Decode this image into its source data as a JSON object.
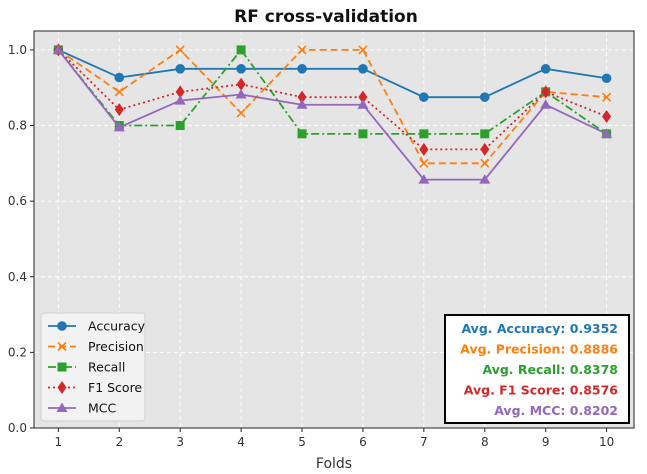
{
  "chart_data": {
    "type": "line",
    "title": "RF cross-validation",
    "xlabel": "Folds",
    "ylabel": "",
    "x": [
      1,
      2,
      3,
      4,
      5,
      6,
      7,
      8,
      9,
      10
    ],
    "xlim": [
      0.6,
      10.45
    ],
    "ylim": [
      0.0,
      1.05
    ],
    "yticks": [
      "0.0",
      "0.2",
      "0.4",
      "0.6",
      "0.8",
      "1.0"
    ],
    "xticks": [
      "1",
      "2",
      "3",
      "4",
      "5",
      "6",
      "7",
      "8",
      "9",
      "10"
    ],
    "grid": true,
    "legend_position": "lower-left",
    "series": [
      {
        "name": "Accuracy",
        "color": "#1f77b4",
        "linestyle": "solid",
        "marker": "circle",
        "values": [
          1.0,
          0.927,
          0.95,
          0.95,
          0.95,
          0.95,
          0.875,
          0.875,
          0.95,
          0.925
        ]
      },
      {
        "name": "Precision",
        "color": "#ff7f0e",
        "linestyle": "dashed",
        "marker": "x",
        "values": [
          1.0,
          0.889,
          1.0,
          0.833,
          1.0,
          1.0,
          0.7,
          0.7,
          0.889,
          0.875
        ]
      },
      {
        "name": "Recall",
        "color": "#2ca02c",
        "linestyle": "dashdot",
        "marker": "square",
        "values": [
          1.0,
          0.8,
          0.8,
          1.0,
          0.778,
          0.778,
          0.778,
          0.778,
          0.889,
          0.778
        ]
      },
      {
        "name": "F1 Score",
        "color": "#d62728",
        "linestyle": "dotted",
        "marker": "diamond",
        "values": [
          1.0,
          0.842,
          0.889,
          0.909,
          0.875,
          0.875,
          0.737,
          0.737,
          0.889,
          0.824
        ]
      },
      {
        "name": "MCC",
        "color": "#9467bd",
        "linestyle": "solid",
        "marker": "triangle",
        "values": [
          1.0,
          0.795,
          0.866,
          0.882,
          0.855,
          0.855,
          0.657,
          0.657,
          0.855,
          0.778
        ]
      }
    ],
    "annotations": [
      {
        "text": "Avg. Accuracy: 0.9352",
        "color": "#1f77b4"
      },
      {
        "text": "Avg. Precision: 0.8886",
        "color": "#ff7f0e"
      },
      {
        "text": "Avg. Recall: 0.8378",
        "color": "#2ca02c"
      },
      {
        "text": "Avg. F1 Score: 0.8576",
        "color": "#d62728"
      },
      {
        "text": "Avg. MCC: 0.8202",
        "color": "#9467bd"
      }
    ]
  }
}
